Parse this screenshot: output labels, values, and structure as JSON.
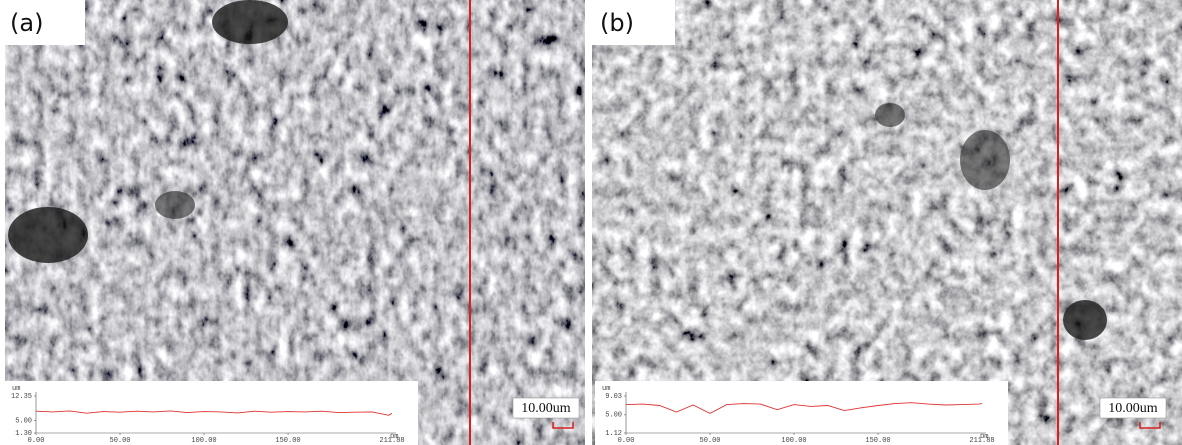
{
  "panels": [
    {
      "label": "(a)",
      "scale_bar": "10.00um",
      "profile": {
        "type": "line",
        "y_unit": "um",
        "x_unit": "um",
        "color": "#e03030",
        "ylim": [
          1.3,
          12.35
        ],
        "yticks": [
          12.35,
          {
            "value": 5,
            "label": "5.00"
          },
          {
            "value": 1.3,
            "label": "1.30"
          }
        ],
        "xlim": [
          0,
          211.88
        ],
        "xticks": [
          {
            "value": 0,
            "label": "0.00"
          },
          {
            "value": 50,
            "label": "50.00"
          },
          {
            "value": 100,
            "label": "100.00"
          },
          {
            "value": 150,
            "label": "150.00"
          },
          211.88
        ],
        "x": [
          0,
          10,
          20,
          30,
          40,
          50,
          60,
          70,
          80,
          90,
          100,
          110,
          120,
          130,
          140,
          150,
          160,
          170,
          180,
          190,
          200,
          210,
          211.88
        ],
        "values": [
          7.8,
          7.6,
          7.9,
          7.2,
          7.7,
          7.5,
          7.8,
          7.6,
          7.9,
          7.4,
          7.7,
          7.6,
          7.3,
          7.8,
          7.5,
          7.7,
          7.6,
          7.8,
          7.4,
          7.5,
          7.6,
          6.6,
          7.2
        ]
      }
    },
    {
      "label": "(b)",
      "scale_bar": "10.00um",
      "profile": {
        "type": "line",
        "y_unit": "um",
        "x_unit": "um",
        "color": "#e03030",
        "ylim": [
          1.12,
          9.03
        ],
        "yticks": [
          9.03,
          {
            "value": 5,
            "label": "5.00"
          },
          1.12
        ],
        "xlim": [
          0,
          211.88
        ],
        "xticks": [
          {
            "value": 0,
            "label": "0.00"
          },
          {
            "value": 50,
            "label": "50.00"
          },
          {
            "value": 100,
            "label": "100.00"
          },
          {
            "value": 150,
            "label": "150.00"
          },
          211.88
        ],
        "x": [
          0,
          10,
          20,
          30,
          40,
          50,
          60,
          70,
          80,
          90,
          100,
          110,
          120,
          130,
          140,
          150,
          160,
          170,
          180,
          190,
          200,
          210,
          211.88
        ],
        "values": [
          7.2,
          7.3,
          7.0,
          5.6,
          7.1,
          5.3,
          7.2,
          7.4,
          7.3,
          6.1,
          7.2,
          6.8,
          7.0,
          5.9,
          6.5,
          7.0,
          7.4,
          7.6,
          7.3,
          7.1,
          7.2,
          7.3,
          7.4
        ]
      }
    }
  ]
}
